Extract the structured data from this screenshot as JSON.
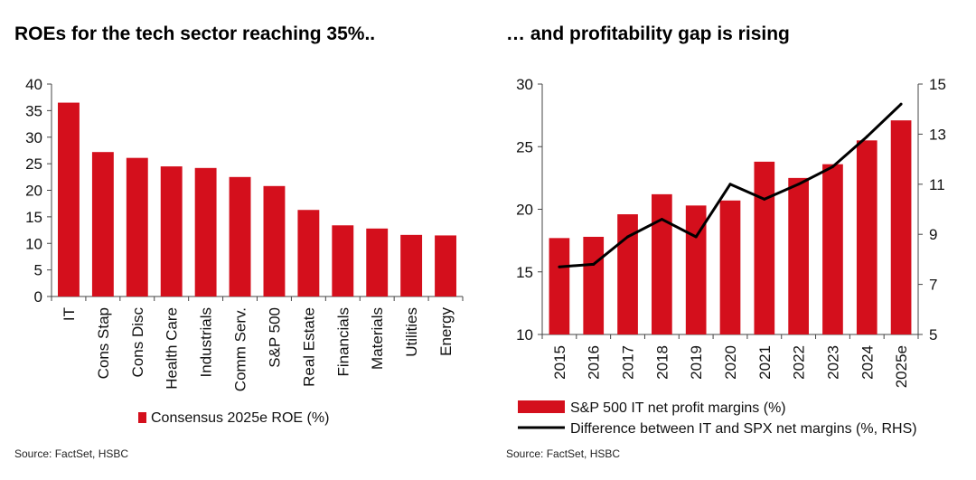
{
  "titles": {
    "left": "ROEs for the tech sector reaching 35%..",
    "right": "… and profitability gap is rising"
  },
  "sources": {
    "left": "Source: FactSet, HSBC",
    "right": "Source: FactSet, HSBC"
  },
  "colors": {
    "bar": "#d40f1c",
    "line": "#000000",
    "axis": "#444444"
  },
  "chart_data": [
    {
      "type": "bar",
      "title": "ROEs for the tech sector reaching 35%..",
      "categories": [
        "IT",
        "Cons Stap",
        "Cons Disc",
        "Health Care",
        "Industrials",
        "Comm Serv.",
        "S&P 500",
        "Real Estate",
        "Financials",
        "Materials",
        "Utilities",
        "Energy"
      ],
      "series": [
        {
          "name": "Consensus 2025e ROE (%)",
          "values": [
            36.5,
            27.2,
            26.1,
            24.5,
            24.2,
            22.5,
            20.8,
            16.3,
            13.4,
            12.8,
            11.6,
            11.5
          ]
        }
      ],
      "ylim": [
        0,
        40
      ],
      "yticks": [
        "0",
        "5",
        "10",
        "15",
        "20",
        "25",
        "30",
        "35",
        "40"
      ],
      "xlabel": "",
      "ylabel": "",
      "grid": false,
      "legend": "bottom"
    },
    {
      "type": "bar",
      "title": "… and profitability gap is rising",
      "categories": [
        "2015",
        "2016",
        "2017",
        "2018",
        "2019",
        "2020",
        "2021",
        "2022",
        "2023",
        "2024",
        "2025e"
      ],
      "series": [
        {
          "name": "S&P 500 IT net profit margins (%)",
          "type": "bar",
          "axis": "left",
          "values": [
            17.7,
            17.8,
            19.6,
            21.2,
            20.3,
            20.7,
            23.8,
            22.5,
            23.6,
            25.5,
            27.1
          ]
        },
        {
          "name": "Difference between IT and SPX net margins (%, RHS)",
          "type": "line",
          "axis": "right",
          "values": [
            7.7,
            7.8,
            8.9,
            9.6,
            8.9,
            11.0,
            10.4,
            11.0,
            11.7,
            12.9,
            14.2
          ]
        }
      ],
      "ylim": [
        10,
        30
      ],
      "yticks": [
        "10",
        "15",
        "20",
        "25",
        "30"
      ],
      "y2lim": [
        5,
        15
      ],
      "y2ticks": [
        "5",
        "7",
        "9",
        "11",
        "13",
        "15"
      ],
      "xlabel": "",
      "ylabel": "",
      "grid": false,
      "legend": "bottom"
    }
  ]
}
